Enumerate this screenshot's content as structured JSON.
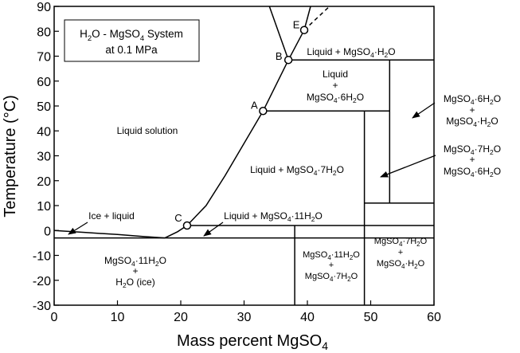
{
  "chart_data": {
    "type": "phase-diagram",
    "title_line1_prefix": "H",
    "title_line1_sub1": "2",
    "title_line1_mid": "O - MgSO",
    "title_line1_sub2": "4",
    "title_line1_suffix": " System",
    "title_line2": "at 0.1 MPa",
    "xlabel_main": "Mass percent MgSO",
    "xlabel_sub": "4",
    "ylabel": "Temperature (°C)",
    "xlim": [
      0,
      60
    ],
    "ylim": [
      -30,
      90
    ],
    "x_ticks": [
      0,
      10,
      20,
      30,
      40,
      50,
      60
    ],
    "y_ticks": [
      -30,
      -20,
      -10,
      0,
      10,
      20,
      30,
      40,
      50,
      60,
      70,
      80,
      90
    ],
    "points": [
      {
        "label": "A",
        "x": 33.0,
        "y": 48.0
      },
      {
        "label": "B",
        "x": 37.0,
        "y": 68.5
      },
      {
        "label": "C",
        "x": 21.0,
        "y": 2.0
      },
      {
        "label": "E",
        "x": 39.5,
        "y": 80.5
      }
    ],
    "curves": {
      "ice_liquidus": [
        [
          0,
          0
        ],
        [
          5,
          -0.8
        ],
        [
          10,
          -1.6
        ],
        [
          14,
          -2.4
        ],
        [
          17.5,
          -3.0
        ]
      ],
      "liquidus_11": [
        [
          17.5,
          -3.0
        ],
        [
          19.5,
          -0.5
        ],
        [
          21.0,
          2.0
        ]
      ],
      "liquidus_7": [
        [
          21.0,
          2.0
        ],
        [
          24,
          10
        ],
        [
          27,
          22
        ],
        [
          30,
          35
        ],
        [
          33.0,
          48.0
        ]
      ],
      "liquidus_6": [
        [
          33.0,
          48.0
        ],
        [
          37.0,
          68.5
        ]
      ],
      "liquidus_1": [
        [
          37.0,
          68.5
        ],
        [
          34.0,
          90.0
        ]
      ],
      "liquidus_upper": [
        [
          37.0,
          68.5
        ],
        [
          39.5,
          80.5
        ],
        [
          40.5,
          90.0
        ]
      ],
      "metastable_dashed": [
        [
          39.5,
          80.5
        ],
        [
          43.5,
          90.0
        ]
      ],
      "eutectic_line": [
        [
          0,
          -3.0
        ],
        [
          60,
          -3.0
        ]
      ],
      "line_C": [
        [
          21.0,
          2.0
        ],
        [
          60,
          2.0
        ]
      ],
      "line_A": [
        [
          33.0,
          48.0
        ],
        [
          53.0,
          48.0
        ]
      ],
      "line_B": [
        [
          37.0,
          68.5
        ],
        [
          60,
          68.5
        ]
      ],
      "vline_11": [
        [
          38.0,
          2.0
        ],
        [
          38.0,
          -30.0
        ]
      ],
      "vline_7": [
        [
          49.0,
          48.0
        ],
        [
          49.0,
          -30.0
        ]
      ],
      "vline_6": [
        [
          53.0,
          68.5
        ],
        [
          53.0,
          11.0
        ]
      ],
      "line_7_upper": [
        [
          49.0,
          11.0
        ],
        [
          60,
          11.0
        ]
      ]
    },
    "region_labels": {
      "liquid_solution": "Liquid solution",
      "ice_liquid": "Ice + liquid",
      "liquid_prefix": "Liquid + MgSO",
      "sub4": "4",
      "h2o": "H",
      "h2o_sub": "2",
      "o": "O",
      "plus": "+",
      "dot": "·",
      "liquid_11_prefix": "Liquid + MgSO",
      "liquid_11_suffix": "11H",
      "liquid_7_suffix": "7H",
      "liquid_1_suffix": "H",
      "liquid_word": "Liquid",
      "hexa_6": "6H",
      "eleven": "11H",
      "seven": "7H",
      "mgso": "MgSO",
      "ice_paren": " (ice)"
    }
  }
}
